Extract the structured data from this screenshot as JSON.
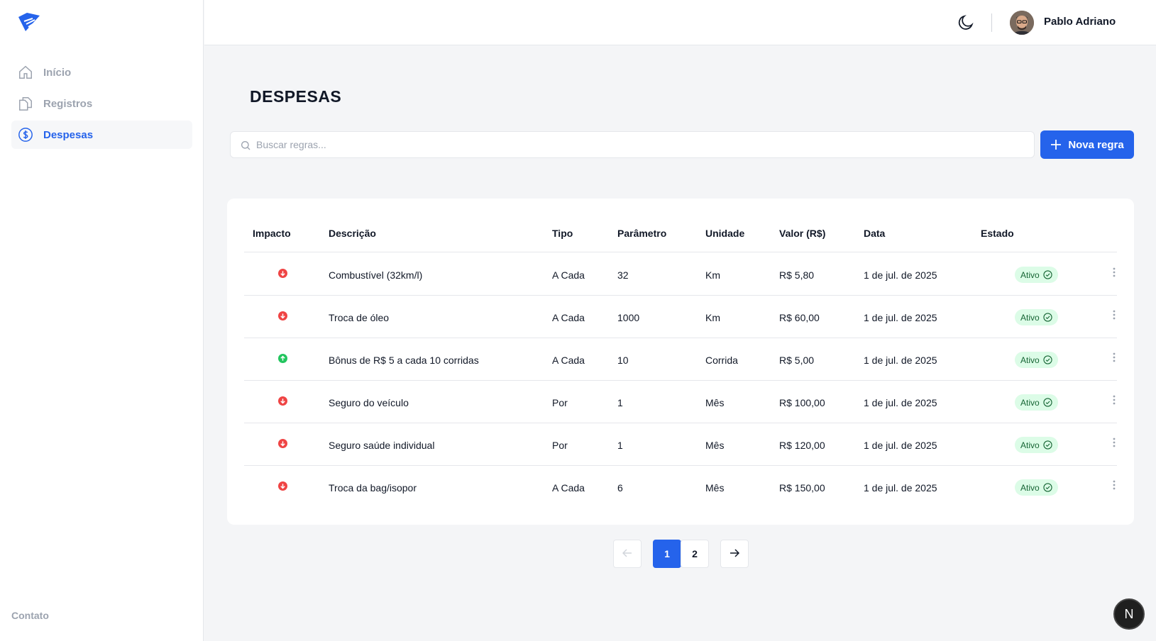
{
  "sidebar": {
    "items": [
      {
        "label": "Início",
        "icon": "home-icon"
      },
      {
        "label": "Registros",
        "icon": "files-icon"
      },
      {
        "label": "Despesas",
        "icon": "dollar-circle-icon"
      }
    ],
    "contact": "Contato"
  },
  "header": {
    "user_name": "Pablo Adriano"
  },
  "main": {
    "title": "DESPESAS",
    "search_placeholder": "Buscar regras...",
    "new_button": "Nova regra"
  },
  "table": {
    "columns": [
      "Impacto",
      "Descrição",
      "Tipo",
      "Parâmetro",
      "Unidade",
      "Valor (R$)",
      "Data",
      "Estado"
    ],
    "rows": [
      {
        "impact": "down",
        "description": "Combustível (32km/l)",
        "type": "A Cada",
        "param": "32",
        "unit": "Km",
        "value": "R$ 5,80",
        "date": "1 de jul. de 2025",
        "status": "Ativo"
      },
      {
        "impact": "down",
        "description": "Troca de óleo",
        "type": "A Cada",
        "param": "1000",
        "unit": "Km",
        "value": "R$ 60,00",
        "date": "1 de jul. de 2025",
        "status": "Ativo"
      },
      {
        "impact": "up",
        "description": "Bônus de R$ 5 a cada 10 corridas",
        "type": "A Cada",
        "param": "10",
        "unit": "Corrida",
        "value": "R$ 5,00",
        "date": "1 de jul. de 2025",
        "status": "Ativo"
      },
      {
        "impact": "down",
        "description": "Seguro do veículo",
        "type": "Por",
        "param": "1",
        "unit": "Mês",
        "value": "R$ 100,00",
        "date": "1 de jul. de 2025",
        "status": "Ativo"
      },
      {
        "impact": "down",
        "description": "Seguro saúde individual",
        "type": "Por",
        "param": "1",
        "unit": "Mês",
        "value": "R$ 120,00",
        "date": "1 de jul. de 2025",
        "status": "Ativo"
      },
      {
        "impact": "down",
        "description": "Troca da bag/isopor",
        "type": "A Cada",
        "param": "6",
        "unit": "Mês",
        "value": "R$ 150,00",
        "date": "1 de jul. de 2025",
        "status": "Ativo"
      }
    ]
  },
  "pagination": {
    "pages": [
      "1",
      "2"
    ],
    "current": "1"
  },
  "dev_badge": "N",
  "colors": {
    "accent": "#2563eb",
    "impact_down": "#ef4444",
    "impact_up": "#22c55e",
    "status_bg": "#dcfce7",
    "status_text": "#166534"
  }
}
